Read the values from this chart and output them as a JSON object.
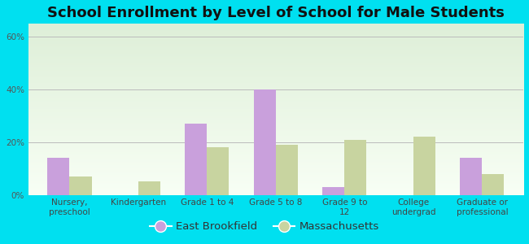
{
  "title": "School Enrollment by Level of School for Male Students",
  "categories": [
    "Nursery,\npreschool",
    "Kindergarten",
    "Grade 1 to 4",
    "Grade 5 to 8",
    "Grade 9 to\n12",
    "College\nundergrad",
    "Graduate or\nprofessional"
  ],
  "east_brookfield": [
    14,
    0,
    27,
    40,
    3,
    0,
    14
  ],
  "massachusetts": [
    7,
    5,
    18,
    19,
    21,
    22,
    8
  ],
  "eb_color": "#c9a0dc",
  "ma_color": "#c8d4a0",
  "background_outer": "#00e0f0",
  "background_inner_top": "#deefd8",
  "background_inner_bottom": "#f8fff5",
  "yticks": [
    0,
    20,
    40,
    60
  ],
  "ylim": [
    0,
    65
  ],
  "bar_width": 0.32,
  "legend_labels": [
    "East Brookfield",
    "Massachusetts"
  ],
  "title_fontsize": 13,
  "tick_fontsize": 7.5,
  "legend_fontsize": 9.5
}
